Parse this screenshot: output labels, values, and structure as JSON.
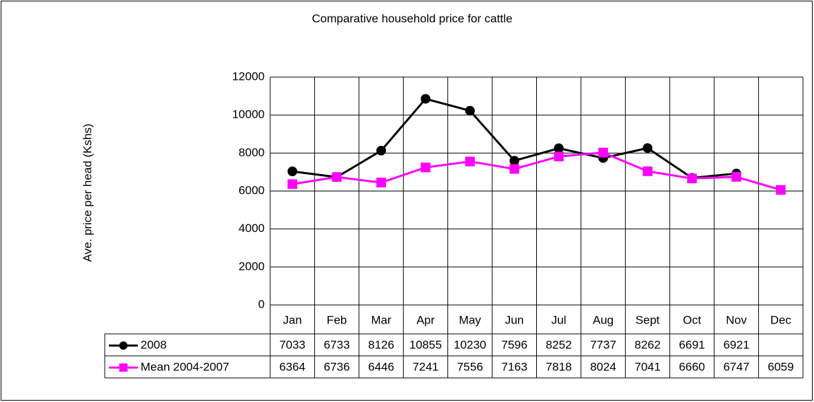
{
  "chart_data": {
    "type": "line",
    "title": "Comparative household price for cattle",
    "y_label": "Ave. price per head (Kshs)",
    "categories": [
      "Jan",
      "Feb",
      "Mar",
      "Apr",
      "May",
      "Jun",
      "Jul",
      "Aug",
      "Sept",
      "Oct",
      "Nov",
      "Dec"
    ],
    "series": [
      {
        "name": "2008",
        "color": "#000000",
        "marker": "circle",
        "values": [
          7033,
          6733,
          8126,
          10855,
          10230,
          7596,
          8252,
          7737,
          8262,
          6691,
          6921,
          null
        ]
      },
      {
        "name": "Mean 2004-2007",
        "color": "#ff00ff",
        "marker": "square",
        "values": [
          6364,
          6736,
          6446,
          7241,
          7556,
          7163,
          7818,
          8024,
          7041,
          6660,
          6747,
          6059
        ]
      }
    ],
    "ylim": [
      0,
      12000
    ],
    "yticks": [
      0,
      2000,
      4000,
      6000,
      8000,
      10000,
      12000
    ],
    "grid": true
  }
}
